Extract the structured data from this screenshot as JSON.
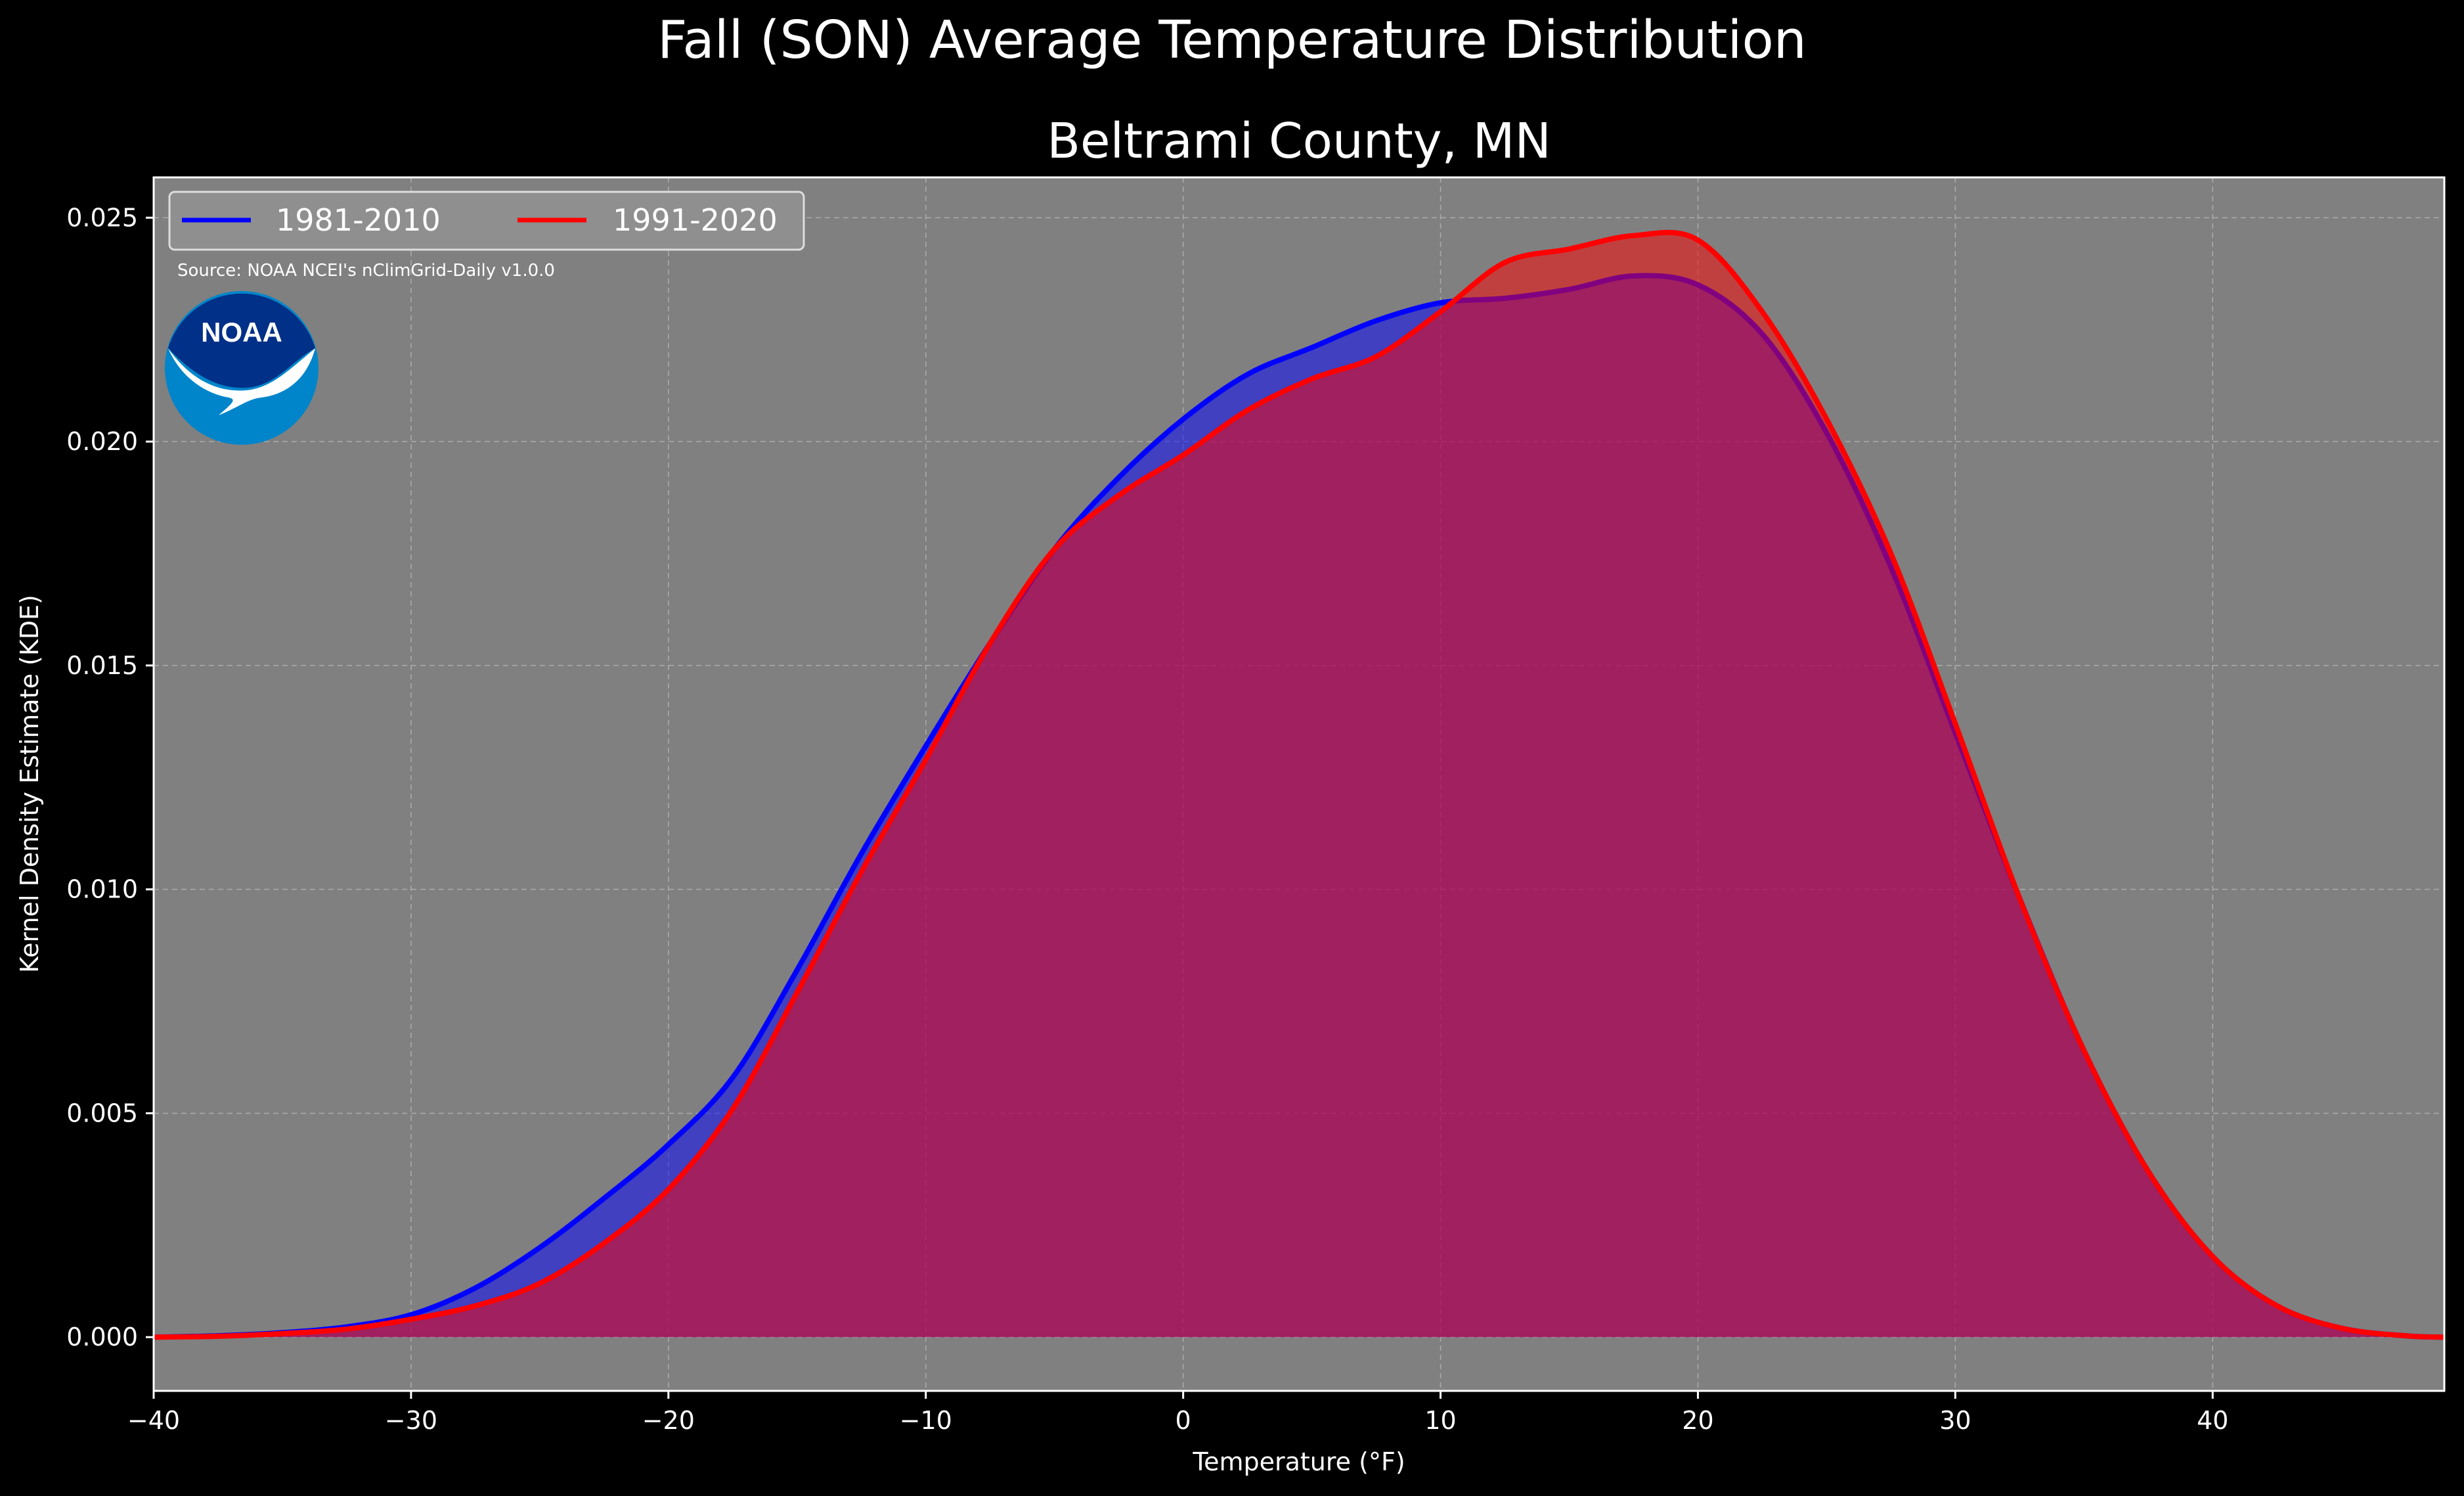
{
  "figure": {
    "title": "Fall (SON) Average Temperature Distribution",
    "source": "Source: NOAA NCEI's nClimGrid-Daily v1.0.0",
    "logo": {
      "icon": "noaa-logo",
      "text": "NOAA",
      "colors": {
        "outer": "#0085ca",
        "inner": "#003087",
        "bird": "#ffffff"
      }
    },
    "background": "#000000",
    "plot_background": "#808080"
  },
  "chart_data": {
    "type": "area",
    "title": "Beltrami County, MN",
    "xlabel": "Temperature ($^\\circ$F)",
    "xlabel_display": "Temperature (°F)",
    "ylabel": "Kernel Density Estimate (KDE)",
    "xlim": [
      -40,
      49
    ],
    "ylim": [
      -0.0012,
      0.0259
    ],
    "xticks": [
      -40,
      -30,
      -20,
      -10,
      0,
      10,
      20,
      30,
      40
    ],
    "xtick_labels": [
      "−40",
      "−30",
      "−20",
      "−10",
      "0",
      "10",
      "20",
      "30",
      "40"
    ],
    "yticks": [
      0.0,
      0.005,
      0.01,
      0.015,
      0.02,
      0.025
    ],
    "ytick_labels": [
      "0.000",
      "0.005",
      "0.010",
      "0.015",
      "0.020",
      "0.025"
    ],
    "grid": true,
    "legend": {
      "placement": "top-left",
      "columns": 2
    },
    "series": [
      {
        "name": "1981-2010",
        "color": "#0000ff",
        "x": [
          -40,
          -37.5,
          -35,
          -32.5,
          -30,
          -27.5,
          -25,
          -22.5,
          -20,
          -17.5,
          -15,
          -12.5,
          -10,
          -7.5,
          -5,
          -2.5,
          0,
          2.5,
          5,
          7.5,
          10,
          12.5,
          15,
          17.5,
          20,
          22.5,
          25,
          27.5,
          30,
          32.5,
          35,
          37.5,
          40,
          42.5,
          45,
          47.5,
          49
        ],
        "y": [
          0.0,
          3e-05,
          0.0001,
          0.00023,
          0.0005,
          0.0011,
          0.002,
          0.0031,
          0.0043,
          0.0058,
          0.0082,
          0.0108,
          0.0132,
          0.0155,
          0.0176,
          0.0192,
          0.0205,
          0.0215,
          0.0221,
          0.0227,
          0.0231,
          0.0232,
          0.0234,
          0.0237,
          0.0235,
          0.0224,
          0.0202,
          0.0172,
          0.0135,
          0.0098,
          0.0064,
          0.0037,
          0.0018,
          0.0007,
          0.0002,
          3e-05,
          0.0
        ]
      },
      {
        "name": "1991-2020",
        "color": "#ff0000",
        "x": [
          -40,
          -37.5,
          -35,
          -32.5,
          -30,
          -27.5,
          -25,
          -22.5,
          -20,
          -17.5,
          -15,
          -12.5,
          -10,
          -7.5,
          -5,
          -2.5,
          0,
          2.5,
          5,
          7.5,
          10,
          12.5,
          15,
          17.5,
          20,
          22.5,
          25,
          27.5,
          30,
          32.5,
          35,
          37.5,
          40,
          42.5,
          45,
          47.5,
          49
        ],
        "y": [
          0.0,
          2e-05,
          8e-05,
          0.00018,
          0.0004,
          0.0007,
          0.0012,
          0.0021,
          0.0033,
          0.0051,
          0.0077,
          0.0104,
          0.0129,
          0.0155,
          0.0176,
          0.0188,
          0.0197,
          0.0207,
          0.0214,
          0.0219,
          0.0229,
          0.024,
          0.0243,
          0.0246,
          0.0245,
          0.0229,
          0.0205,
          0.0175,
          0.0137,
          0.0098,
          0.0064,
          0.0037,
          0.0018,
          0.0007,
          0.0002,
          3e-05,
          0.0
        ]
      }
    ]
  }
}
